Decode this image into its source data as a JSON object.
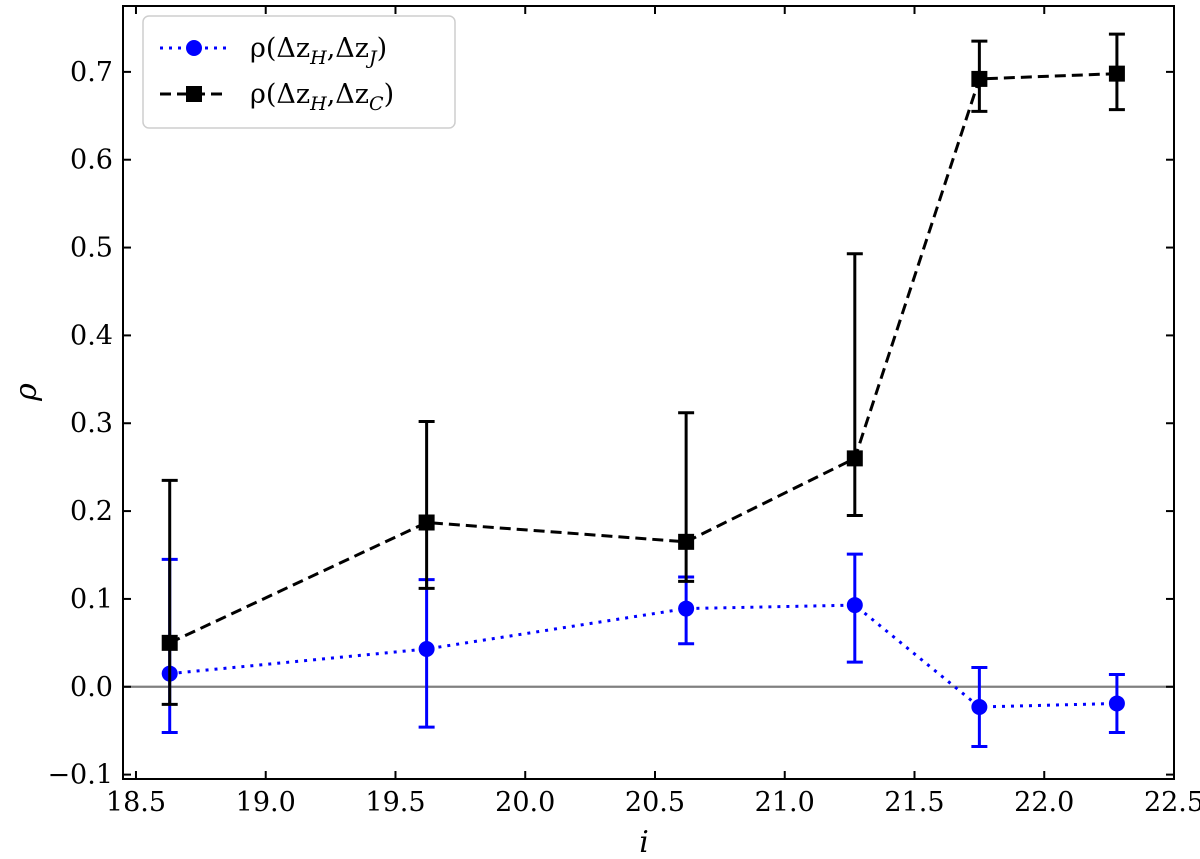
{
  "chart_data": {
    "type": "line",
    "xlabel": "i",
    "ylabel": "ρ",
    "xlim": [
      18.45,
      22.5
    ],
    "ylim": [
      -0.105,
      0.775
    ],
    "xticks": [
      18.5,
      19.0,
      19.5,
      20.0,
      20.5,
      21.0,
      21.5,
      22.0,
      22.5
    ],
    "xtick_labels": [
      "18.5",
      "19.0",
      "19.5",
      "20.0",
      "20.5",
      "21.0",
      "21.5",
      "22.0",
      "22.5"
    ],
    "yticks": [
      -0.1,
      0.0,
      0.1,
      0.2,
      0.3,
      0.4,
      0.5,
      0.6,
      0.7
    ],
    "ytick_labels": [
      "−0.1",
      "0.0",
      "0.1",
      "0.2",
      "0.3",
      "0.4",
      "0.5",
      "0.6",
      "0.7"
    ],
    "reference_line": {
      "y": 0.0,
      "color": "#808080"
    },
    "legend_position": "top-left",
    "series": [
      {
        "name": "ρ(Δz_H,Δz_J)",
        "legend": {
          "base": "ρ(Δz",
          "sub1": "H",
          "mid": ",Δz",
          "sub2": "J",
          "end": ")"
        },
        "color": "#0000ff",
        "line_style": "dotted",
        "marker": "circle",
        "x": [
          18.63,
          19.62,
          20.62,
          21.27,
          21.75,
          22.28
        ],
        "y": [
          0.015,
          0.043,
          0.089,
          0.093,
          -0.023,
          -0.019
        ],
        "err_low": [
          -0.052,
          -0.046,
          0.049,
          0.028,
          -0.068,
          -0.052
        ],
        "err_high": [
          0.145,
          0.122,
          0.125,
          0.151,
          0.022,
          0.014
        ]
      },
      {
        "name": "ρ(Δz_H,Δz_C)",
        "legend": {
          "base": "ρ(Δz",
          "sub1": "H",
          "mid": ",Δz",
          "sub2": "C",
          "end": ")"
        },
        "color": "#000000",
        "line_style": "dashed",
        "marker": "square",
        "x": [
          18.63,
          19.62,
          20.62,
          21.27,
          21.75,
          22.28
        ],
        "y": [
          0.05,
          0.187,
          0.165,
          0.26,
          0.692,
          0.698
        ],
        "err_low": [
          -0.02,
          0.112,
          0.12,
          0.195,
          0.655,
          0.657
        ],
        "err_high": [
          0.235,
          0.302,
          0.312,
          0.493,
          0.735,
          0.743
        ]
      }
    ]
  }
}
